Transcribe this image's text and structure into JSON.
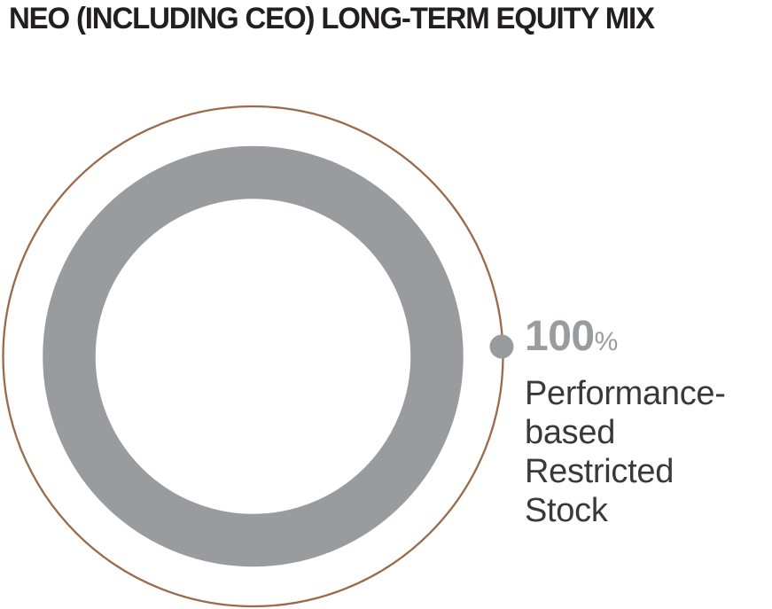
{
  "title": "NEO (INCLUDING CEO) LONG-TERM EQUITY MIX",
  "chart_data": {
    "type": "pie",
    "subtype": "donut",
    "title": "NEO (INCLUDING CEO) LONG-TERM EQUITY MIX",
    "categories": [
      "Performance-based Restricted Stock"
    ],
    "values": [
      100
    ],
    "unit": "%",
    "legend_position": "right",
    "annotations": [
      "100% Performance-based Restricted Stock"
    ],
    "colors": {
      "slice": "#9a9b9e",
      "outer_circle": "#9b6a4a",
      "marker_dot": "#9a9b9e",
      "hole": "#ffffff"
    }
  },
  "callout": {
    "value": "100",
    "unit": "%",
    "lines": [
      "Performance-",
      "based Restricted",
      "Stock"
    ]
  },
  "colors": {
    "title_text": "#231f20",
    "label_text": "#39393b",
    "value_text": "#9a9b9e"
  }
}
